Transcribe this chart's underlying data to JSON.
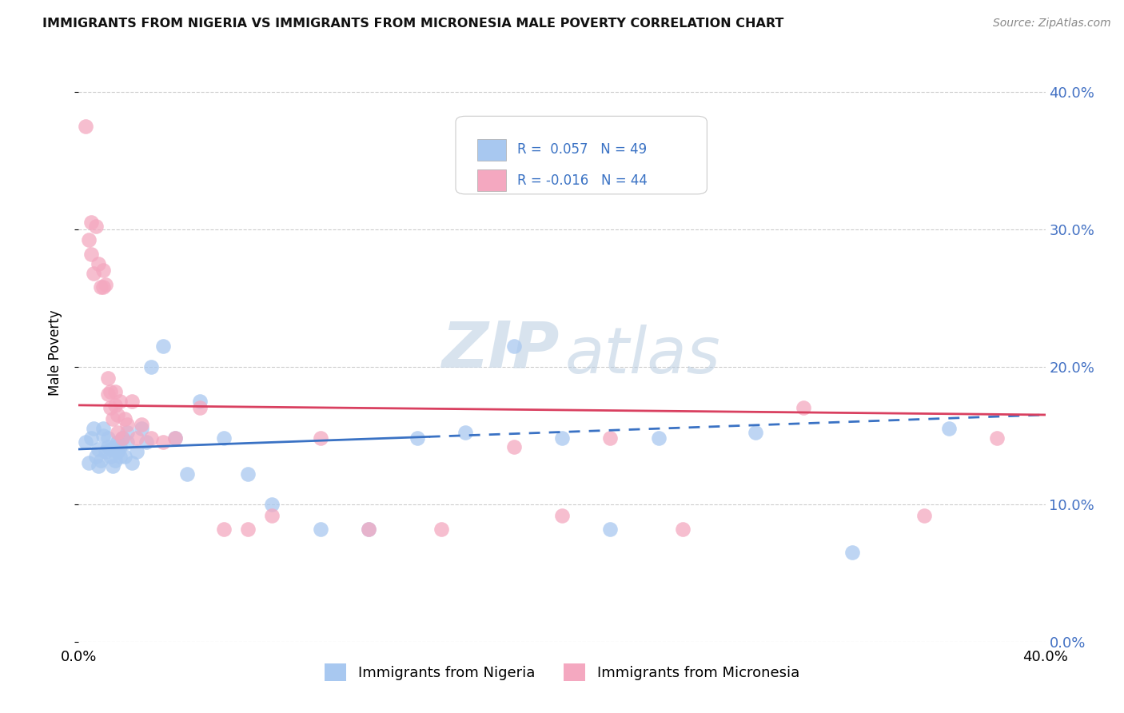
{
  "title": "IMMIGRANTS FROM NIGERIA VS IMMIGRANTS FROM MICRONESIA MALE POVERTY CORRELATION CHART",
  "source": "Source: ZipAtlas.com",
  "ylabel": "Male Poverty",
  "xlim": [
    0.0,
    0.4
  ],
  "ylim": [
    0.0,
    0.42
  ],
  "ytick_vals": [
    0.0,
    0.1,
    0.2,
    0.3,
    0.4
  ],
  "xtick_vals": [
    0.0,
    0.4
  ],
  "nigeria_R": "0.057",
  "nigeria_N": 49,
  "micronesia_R": "-0.016",
  "micronesia_N": 44,
  "nigeria_color": "#a8c8f0",
  "micronesia_color": "#f4a8c0",
  "nigeria_line_color": "#3a72c4",
  "micronesia_line_color": "#d94060",
  "nigeria_x": [
    0.003,
    0.004,
    0.005,
    0.006,
    0.007,
    0.008,
    0.008,
    0.009,
    0.01,
    0.01,
    0.011,
    0.012,
    0.012,
    0.013,
    0.013,
    0.014,
    0.015,
    0.015,
    0.016,
    0.016,
    0.017,
    0.017,
    0.018,
    0.019,
    0.02,
    0.02,
    0.022,
    0.024,
    0.026,
    0.028,
    0.03,
    0.035,
    0.04,
    0.045,
    0.05,
    0.06,
    0.07,
    0.08,
    0.1,
    0.12,
    0.14,
    0.16,
    0.18,
    0.2,
    0.22,
    0.24,
    0.28,
    0.32,
    0.36
  ],
  "nigeria_y": [
    0.145,
    0.13,
    0.148,
    0.155,
    0.135,
    0.128,
    0.14,
    0.132,
    0.15,
    0.155,
    0.138,
    0.142,
    0.148,
    0.135,
    0.14,
    0.128,
    0.132,
    0.142,
    0.145,
    0.138,
    0.135,
    0.142,
    0.148,
    0.135,
    0.152,
    0.145,
    0.13,
    0.138,
    0.155,
    0.145,
    0.2,
    0.215,
    0.148,
    0.122,
    0.175,
    0.148,
    0.122,
    0.1,
    0.082,
    0.082,
    0.148,
    0.152,
    0.215,
    0.148,
    0.082,
    0.148,
    0.152,
    0.065,
    0.155
  ],
  "micronesia_x": [
    0.003,
    0.004,
    0.005,
    0.005,
    0.006,
    0.007,
    0.008,
    0.009,
    0.01,
    0.01,
    0.011,
    0.012,
    0.012,
    0.013,
    0.013,
    0.014,
    0.015,
    0.015,
    0.016,
    0.016,
    0.017,
    0.018,
    0.019,
    0.02,
    0.022,
    0.024,
    0.026,
    0.03,
    0.035,
    0.04,
    0.05,
    0.06,
    0.07,
    0.08,
    0.1,
    0.12,
    0.15,
    0.18,
    0.2,
    0.22,
    0.25,
    0.3,
    0.35,
    0.38
  ],
  "micronesia_y": [
    0.375,
    0.292,
    0.305,
    0.282,
    0.268,
    0.302,
    0.275,
    0.258,
    0.27,
    0.258,
    0.26,
    0.192,
    0.18,
    0.17,
    0.182,
    0.162,
    0.172,
    0.182,
    0.152,
    0.165,
    0.175,
    0.148,
    0.162,
    0.158,
    0.175,
    0.148,
    0.158,
    0.148,
    0.145,
    0.148,
    0.17,
    0.082,
    0.082,
    0.092,
    0.148,
    0.082,
    0.082,
    0.142,
    0.092,
    0.148,
    0.082,
    0.17,
    0.092,
    0.148
  ]
}
